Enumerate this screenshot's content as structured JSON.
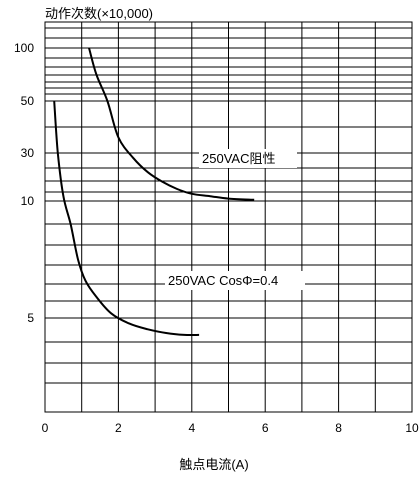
{
  "chart_data": {
    "type": "line",
    "ylabel": "动作次数(×10,000)",
    "xlabel": "触点电流(A)",
    "xlim": [
      0,
      10
    ],
    "x_ticks": [
      "0",
      "2",
      "4",
      "6",
      "8",
      "10"
    ],
    "y_tick_labels": [
      "100",
      "50",
      "30",
      "10",
      "5"
    ],
    "grid": true,
    "series": [
      {
        "name": "250VAC阻性",
        "x": [
          1.2,
          1.4,
          1.7,
          2.0,
          2.4,
          2.8,
          3.2,
          3.6,
          4.0,
          4.5,
          5.0,
          5.7
        ],
        "y": [
          100,
          75,
          50,
          36,
          28,
          22,
          18,
          15,
          13,
          12,
          11,
          10.5
        ]
      },
      {
        "name": "250VAC CosΦ=0.4",
        "x": [
          0.25,
          0.35,
          0.5,
          0.7,
          0.9,
          1.1,
          1.4,
          1.8,
          2.3,
          2.8,
          3.3,
          3.8,
          4.2
        ],
        "y": [
          50,
          30,
          12,
          9,
          7.5,
          6.6,
          5.9,
          5.2,
          4.7,
          4.4,
          4.2,
          4.1,
          4.1
        ]
      }
    ]
  }
}
